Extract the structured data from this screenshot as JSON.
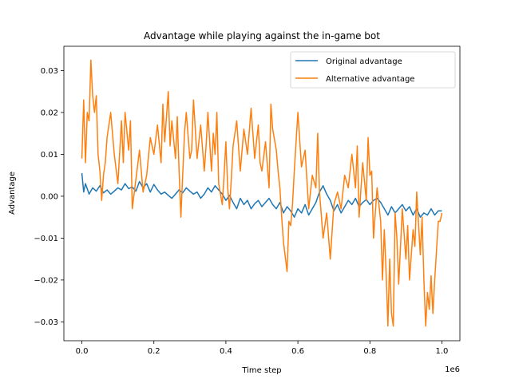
{
  "chart_data": {
    "type": "line",
    "title": "Advantage while playing against the in-game bot",
    "xlabel": "Time step",
    "ylabel": "Advantage",
    "x_offset_label": "1e6",
    "xlim": [
      -50000,
      1050000
    ],
    "ylim": [
      -0.0345,
      0.0358
    ],
    "xticks": [
      0,
      200000,
      400000,
      600000,
      800000,
      1000000
    ],
    "xtick_labels": [
      "0.0",
      "0.2",
      "0.4",
      "0.6",
      "0.8",
      "1.0"
    ],
    "yticks": [
      -0.03,
      -0.02,
      -0.01,
      0.0,
      0.01,
      0.02,
      0.03
    ],
    "ytick_labels": [
      "−0.03",
      "−0.02",
      "−0.01",
      "0.00",
      "0.01",
      "0.02",
      "0.03"
    ],
    "legend_position": "upper-right",
    "grid": false,
    "series": [
      {
        "name": "Original advantage",
        "color": "#1f77b4",
        "x": [
          0,
          5000,
          10000,
          20000,
          30000,
          40000,
          50000,
          60000,
          70000,
          80000,
          90000,
          100000,
          110000,
          120000,
          130000,
          140000,
          150000,
          160000,
          170000,
          180000,
          190000,
          200000,
          210000,
          220000,
          230000,
          240000,
          250000,
          260000,
          270000,
          280000,
          290000,
          300000,
          310000,
          320000,
          330000,
          340000,
          350000,
          360000,
          370000,
          380000,
          390000,
          400000,
          410000,
          420000,
          430000,
          440000,
          450000,
          460000,
          470000,
          480000,
          490000,
          500000,
          510000,
          520000,
          530000,
          540000,
          550000,
          560000,
          570000,
          580000,
          590000,
          600000,
          610000,
          620000,
          630000,
          640000,
          650000,
          660000,
          670000,
          680000,
          690000,
          700000,
          710000,
          720000,
          730000,
          740000,
          750000,
          760000,
          770000,
          780000,
          790000,
          800000,
          810000,
          820000,
          830000,
          840000,
          850000,
          860000,
          870000,
          880000,
          890000,
          900000,
          910000,
          920000,
          930000,
          940000,
          950000,
          960000,
          970000,
          980000,
          990000,
          1000000
        ],
        "y": [
          0.0055,
          0.001,
          0.003,
          0.0005,
          0.002,
          0.0012,
          0.0025,
          0.0008,
          0.0015,
          0.0005,
          0.0012,
          0.002,
          0.0015,
          0.003,
          0.0018,
          0.0022,
          0.0012,
          0.0035,
          0.002,
          0.003,
          0.001,
          0.0028,
          0.0015,
          0.0005,
          0.001,
          0.0002,
          -0.0005,
          0.0005,
          0.0015,
          0.0008,
          0.002,
          0.0012,
          0.0005,
          0.001,
          -0.0005,
          0.0005,
          0.002,
          0.001,
          0.0025,
          0.0015,
          0.0005,
          -0.001,
          0.0002,
          -0.0015,
          -0.003,
          -0.0005,
          -0.002,
          -0.001,
          -0.003,
          -0.0018,
          -0.001,
          -0.0025,
          -0.0015,
          -0.0005,
          -0.002,
          -0.003,
          -0.0015,
          -0.004,
          -0.0025,
          -0.0035,
          -0.005,
          -0.003,
          -0.004,
          -0.002,
          -0.0045,
          -0.003,
          -0.0015,
          0.001,
          0.0025,
          0.0005,
          -0.001,
          -0.0035,
          -0.002,
          -0.004,
          -0.0025,
          -0.001,
          -0.002,
          -0.0005,
          -0.0025,
          -0.0015,
          -0.0008,
          -0.002,
          -0.001,
          -0.0005,
          -0.0015,
          -0.003,
          -0.0045,
          -0.0025,
          -0.004,
          -0.003,
          -0.002,
          -0.0035,
          -0.0025,
          -0.0045,
          -0.003,
          -0.005,
          -0.004,
          -0.0045,
          -0.003,
          -0.0045,
          -0.0035,
          -0.0035
        ]
      },
      {
        "name": "Alternative advantage",
        "color": "#ff7f0e",
        "x": [
          0,
          5000,
          10000,
          15000,
          20000,
          25000,
          30000,
          35000,
          40000,
          45000,
          50000,
          55000,
          60000,
          65000,
          70000,
          80000,
          90000,
          100000,
          110000,
          115000,
          120000,
          130000,
          135000,
          140000,
          150000,
          160000,
          165000,
          170000,
          180000,
          190000,
          200000,
          210000,
          220000,
          225000,
          230000,
          240000,
          245000,
          250000,
          260000,
          265000,
          270000,
          275000,
          280000,
          285000,
          290000,
          300000,
          305000,
          310000,
          320000,
          330000,
          340000,
          345000,
          350000,
          360000,
          365000,
          370000,
          375000,
          380000,
          390000,
          395000,
          400000,
          405000,
          410000,
          415000,
          420000,
          430000,
          440000,
          450000,
          460000,
          470000,
          480000,
          490000,
          495000,
          500000,
          510000,
          520000,
          525000,
          530000,
          540000,
          545000,
          550000,
          555000,
          560000,
          570000,
          575000,
          580000,
          585000,
          590000,
          600000,
          610000,
          620000,
          625000,
          630000,
          640000,
          650000,
          655000,
          660000,
          670000,
          680000,
          690000,
          700000,
          710000,
          720000,
          730000,
          740000,
          750000,
          760000,
          765000,
          770000,
          780000,
          790000,
          795000,
          800000,
          805000,
          810000,
          820000,
          830000,
          835000,
          840000,
          845000,
          850000,
          855000,
          860000,
          865000,
          870000,
          875000,
          880000,
          890000,
          900000,
          905000,
          910000,
          920000,
          925000,
          930000,
          940000,
          945000,
          950000,
          955000,
          960000,
          965000,
          970000,
          975000,
          980000,
          985000,
          990000,
          995000,
          1000000
        ],
        "y": [
          0.009,
          0.023,
          0.008,
          0.02,
          0.018,
          0.0325,
          0.024,
          0.02,
          0.024,
          0.01,
          0.006,
          -0.001,
          0.005,
          0.008,
          0.014,
          0.02,
          0.01,
          0.003,
          0.018,
          0.008,
          0.02,
          0.011,
          0.018,
          -0.003,
          0.004,
          0.011,
          0.006,
          0.001,
          0.005,
          0.014,
          0.01,
          0.017,
          0.008,
          0.022,
          0.013,
          0.025,
          0.012,
          0.018,
          0.009,
          0.019,
          0.006,
          -0.005,
          0.005,
          0.015,
          0.02,
          0.009,
          0.011,
          0.023,
          0.009,
          0.017,
          0.006,
          0.012,
          0.02,
          0.006,
          0.015,
          0.01,
          0.02,
          0.003,
          -0.002,
          0.005,
          0.013,
          0.002,
          -0.003,
          0.004,
          0.012,
          0.018,
          0.006,
          0.016,
          0.01,
          0.021,
          0.009,
          0.017,
          0.008,
          0.006,
          0.013,
          0.002,
          0.022,
          0.016,
          0.011,
          0.006,
          0.002,
          -0.005,
          -0.011,
          -0.018,
          -0.006,
          -0.007,
          -0.002,
          0.006,
          0.02,
          0.007,
          0.011,
          0.004,
          -0.003,
          0.005,
          0.002,
          0.015,
          0.001,
          -0.01,
          -0.004,
          -0.015,
          -0.002,
          0.001,
          -0.003,
          0.005,
          0.002,
          0.01,
          0.002,
          0.012,
          -0.005,
          0.008,
          -0.001,
          0.014,
          0.005,
          0.006,
          -0.01,
          0.002,
          -0.006,
          -0.02,
          -0.008,
          -0.018,
          -0.031,
          -0.015,
          -0.028,
          -0.031,
          -0.004,
          -0.01,
          -0.021,
          -0.003,
          -0.015,
          -0.007,
          -0.02,
          -0.008,
          -0.012,
          0.001,
          -0.014,
          -0.005,
          -0.02,
          -0.031,
          -0.023,
          -0.027,
          -0.019,
          -0.028,
          -0.02,
          -0.013,
          -0.006,
          -0.006,
          -0.004
        ]
      }
    ]
  }
}
